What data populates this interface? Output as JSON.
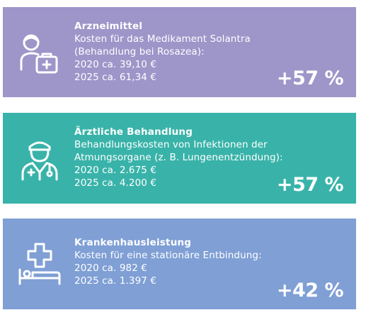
{
  "colors": {
    "card_1_bg": "#9e95c9",
    "card_2_bg": "#39b3a9",
    "card_3_bg": "#7f9fd5",
    "text": "#ffffff"
  },
  "cards": [
    {
      "icon": "doctor-medical-bag-icon",
      "title": "Arzneimittel",
      "lines": [
        "Kosten für das Medikament Solantra",
        "(Behandlung bei Rosazea):",
        "2020 ca. 39,10 €",
        "2025 ca. 61,34 €"
      ],
      "change": "+57 %"
    },
    {
      "icon": "physician-stethoscope-icon",
      "title": "Ärztliche Behandlung",
      "lines": [
        "Behandlungskosten von Infektionen der",
        "Atmungsorgane (z. B. Lungenentzündung):",
        "2020 ca. 2.675 €",
        "2025 ca. 4.200 €"
      ],
      "change": "+57 %"
    },
    {
      "icon": "hospital-bed-icon",
      "title": "Krankenhausleistung",
      "lines": [
        "Kosten für eine stationäre Entbindung:",
        "2020 ca.    982 €",
        "2025 ca. 1.397 €"
      ],
      "change": "+42 %"
    }
  ]
}
